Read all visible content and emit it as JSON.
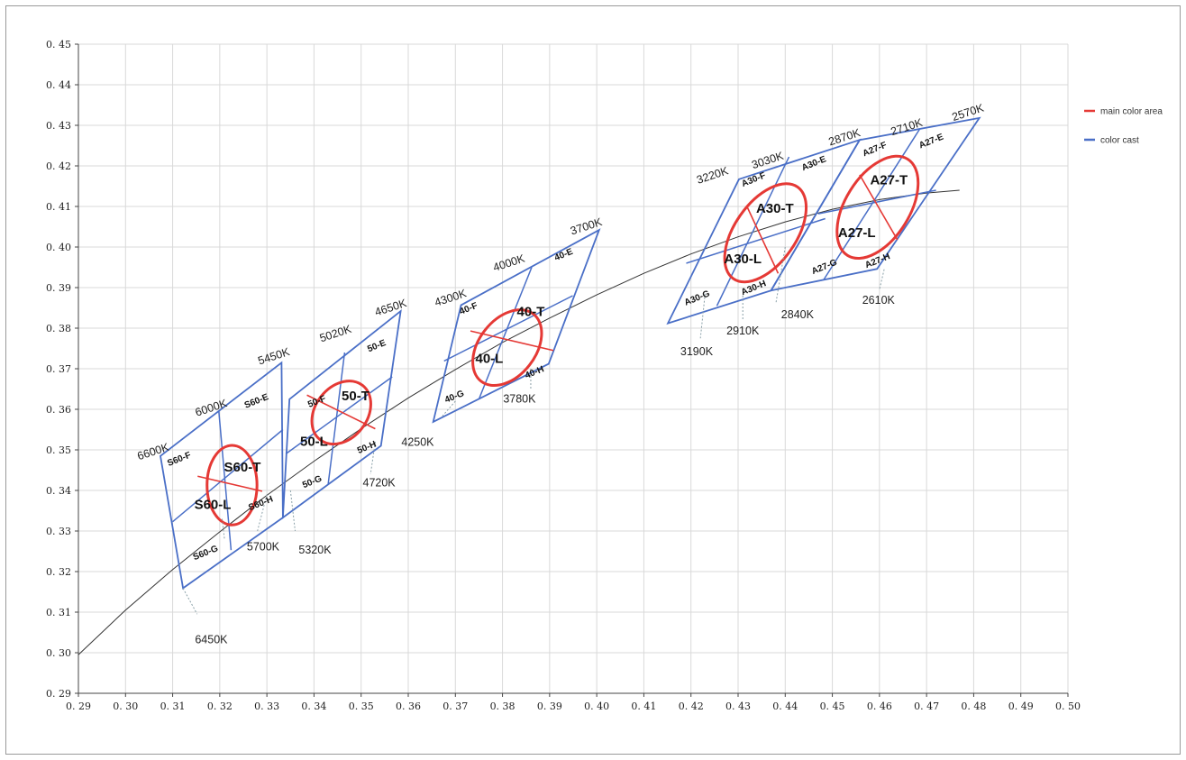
{
  "chart_data": {
    "type": "scatter",
    "title": "",
    "xlabel": "",
    "ylabel": "",
    "xlim": [
      0.29,
      0.5
    ],
    "ylim": [
      0.29,
      0.45
    ],
    "grid": true,
    "legend_placement": "right",
    "x_ticks": [
      "0. 29",
      "0. 30",
      "0. 31",
      "0. 32",
      "0. 33",
      "0. 34",
      "0. 35",
      "0. 36",
      "0. 37",
      "0. 38",
      "0. 39",
      "0. 40",
      "0. 41",
      "0. 42",
      "0. 43",
      "0. 44",
      "0. 45",
      "0. 46",
      "0. 47",
      "0. 48",
      "0. 49",
      "0. 50"
    ],
    "y_ticks": [
      "0. 29",
      "0. 30",
      "0. 31",
      "0. 32",
      "0. 33",
      "0. 34",
      "0. 35",
      "0. 36",
      "0. 37",
      "0. 38",
      "0. 39",
      "0. 40",
      "0. 41",
      "0. 42",
      "0. 43",
      "0. 44",
      "0. 45"
    ],
    "legend": [
      {
        "name": "main color area",
        "color": "#e53935"
      },
      {
        "name": "color cast",
        "color": "#4a6fc7"
      }
    ],
    "colors": {
      "main": "#e53935",
      "cast": "#4a6fc7",
      "locus": "#333333",
      "grid": "#d9d9d9"
    },
    "locus": {
      "x": [
        0.29,
        0.3,
        0.31,
        0.32,
        0.33,
        0.34,
        0.35,
        0.36,
        0.37,
        0.38,
        0.39,
        0.4,
        0.41,
        0.42,
        0.43,
        0.44,
        0.45,
        0.46,
        0.47,
        0.477
      ],
      "y": [
        0.2995,
        0.3105,
        0.3205,
        0.3298,
        0.3388,
        0.3472,
        0.3552,
        0.3628,
        0.3698,
        0.3765,
        0.3825,
        0.3882,
        0.3935,
        0.3983,
        0.4025,
        0.4062,
        0.4093,
        0.4117,
        0.4133,
        0.414
      ]
    },
    "zones": [
      {
        "corners": [
          [
            0.3074,
            0.3485
          ],
          [
            0.3331,
            0.3715
          ],
          [
            0.3334,
            0.3333
          ],
          [
            0.3122,
            0.3159
          ]
        ],
        "inner_lines": [
          [
            [
              0.3198,
              0.3595
            ],
            [
              0.3224,
              0.3253
            ]
          ],
          [
            [
              0.31,
              0.3323
            ],
            [
              0.3334,
              0.355
            ]
          ]
        ],
        "ellipse": {
          "cx": 0.3226,
          "cy": 0.3413,
          "rx": 0.0053,
          "ry": 0.0098,
          "rot": 0
        },
        "ellipse_divider": [
          [
            0.3153,
            0.3435
          ],
          [
            0.329,
            0.3398
          ]
        ],
        "quad_labels": [
          {
            "text": "S60-F",
            "x": 0.3116,
            "y": 0.3471
          },
          {
            "text": "S60-E",
            "x": 0.328,
            "y": 0.3614
          },
          {
            "text": "S60-H",
            "x": 0.3289,
            "y": 0.3362
          },
          {
            "text": "S60-G",
            "x": 0.3172,
            "y": 0.324
          }
        ],
        "main_labels": [
          {
            "text": "S60-T",
            "x": 0.3248,
            "y": 0.3447
          },
          {
            "text": "S60-L",
            "x": 0.3185,
            "y": 0.3355
          }
        ],
        "cct_labels": [
          {
            "text": "6600K",
            "x": 0.3061,
            "y": 0.3487
          },
          {
            "text": "6000K",
            "x": 0.3184,
            "y": 0.3595
          },
          {
            "text": "5450K",
            "x": 0.3317,
            "y": 0.3722
          },
          {
            "text": "6450K",
            "x": 0.3182,
            "y": 0.3023
          },
          {
            "text": "5700K",
            "x": 0.3292,
            "y": 0.3252
          }
        ]
      },
      {
        "corners": [
          [
            0.3348,
            0.3625
          ],
          [
            0.3584,
            0.3842
          ],
          [
            0.3542,
            0.351
          ],
          [
            0.3334,
            0.3333
          ]
        ],
        "inner_lines": [
          [
            [
              0.3465,
              0.374
            ],
            [
              0.343,
              0.3415
            ]
          ],
          [
            [
              0.334,
              0.349
            ],
            [
              0.3566,
              0.368
            ]
          ]
        ],
        "ellipse": {
          "cx": 0.3458,
          "cy": 0.3592,
          "rx": 0.0055,
          "ry": 0.0085,
          "rot": 38
        },
        "ellipse_divider": [
          [
            0.3385,
            0.3635
          ],
          [
            0.353,
            0.3552
          ]
        ],
        "quad_labels": [
          {
            "text": "50-F",
            "x": 0.3408,
            "y": 0.3613
          },
          {
            "text": "50-E",
            "x": 0.3535,
            "y": 0.375
          },
          {
            "text": "50-H",
            "x": 0.3514,
            "y": 0.35
          },
          {
            "text": "50-G",
            "x": 0.3398,
            "y": 0.3415
          }
        ],
        "main_labels": [
          {
            "text": "50-T",
            "x": 0.3488,
            "y": 0.3622
          },
          {
            "text": "50-L",
            "x": 0.34,
            "y": 0.351
          }
        ],
        "cct_labels": [
          {
            "text": "5020K",
            "x": 0.3448,
            "y": 0.3778
          },
          {
            "text": "4650K",
            "x": 0.3565,
            "y": 0.3842
          },
          {
            "text": "5320K",
            "x": 0.3402,
            "y": 0.3244
          },
          {
            "text": "4720K",
            "x": 0.3538,
            "y": 0.341
          }
        ]
      },
      {
        "corners": [
          [
            0.3712,
            0.3857
          ],
          [
            0.4005,
            0.4042
          ],
          [
            0.3898,
            0.3712
          ],
          [
            0.3653,
            0.3569
          ]
        ],
        "inner_lines": [
          [
            [
              0.3862,
              0.395
            ],
            [
              0.375,
              0.3625
            ]
          ],
          [
            [
              0.3676,
              0.3719
            ],
            [
              0.3949,
              0.388
            ]
          ]
        ],
        "ellipse": {
          "cx": 0.381,
          "cy": 0.3752,
          "rx": 0.006,
          "ry": 0.0105,
          "rot": 38
        },
        "ellipse_divider": [
          [
            0.3732,
            0.3793
          ],
          [
            0.3908,
            0.3745
          ]
        ],
        "quad_labels": [
          {
            "text": "40-F",
            "x": 0.373,
            "y": 0.3842
          },
          {
            "text": "40-E",
            "x": 0.3932,
            "y": 0.3975
          },
          {
            "text": "40-H",
            "x": 0.387,
            "y": 0.3685
          },
          {
            "text": "40-G",
            "x": 0.37,
            "y": 0.3625
          }
        ],
        "main_labels": [
          {
            "text": "40-T",
            "x": 0.386,
            "y": 0.383
          },
          {
            "text": "40-L",
            "x": 0.3772,
            "y": 0.3715
          }
        ],
        "cct_labels": [
          {
            "text": "4300K",
            "x": 0.3692,
            "y": 0.3866
          },
          {
            "text": "4000K",
            "x": 0.3816,
            "y": 0.3952
          },
          {
            "text": "3700K",
            "x": 0.398,
            "y": 0.4042
          },
          {
            "text": "4250K",
            "x": 0.362,
            "y": 0.351
          },
          {
            "text": "3780K",
            "x": 0.3836,
            "y": 0.3617
          }
        ]
      },
      {
        "corners": [
          [
            0.4302,
            0.4167
          ],
          [
            0.4558,
            0.4264
          ],
          [
            0.437,
            0.3893
          ],
          [
            0.4151,
            0.3812
          ]
        ],
        "inner_lines": [
          [
            [
              0.4408,
              0.4222
            ],
            [
              0.4255,
              0.3855
            ]
          ],
          [
            [
              0.419,
              0.396
            ],
            [
              0.4485,
              0.407
            ]
          ]
        ],
        "ellipse": {
          "cx": 0.4358,
          "cy": 0.4035,
          "rx": 0.0065,
          "ry": 0.0138,
          "rot": 35
        },
        "ellipse_divider": [
          [
            0.4318,
            0.4102
          ],
          [
            0.4385,
            0.3935
          ]
        ],
        "quad_labels": [
          {
            "text": "A30-F",
            "x": 0.4335,
            "y": 0.416
          },
          {
            "text": "A30-E",
            "x": 0.4463,
            "y": 0.42
          },
          {
            "text": "A30-H",
            "x": 0.4335,
            "y": 0.3893
          },
          {
            "text": "A30-G",
            "x": 0.4215,
            "y": 0.3868
          }
        ],
        "main_labels": [
          {
            "text": "A30-T",
            "x": 0.4378,
            "y": 0.4085
          },
          {
            "text": "A30-L",
            "x": 0.431,
            "y": 0.396
          }
        ],
        "cct_labels": [
          {
            "text": "3220K",
            "x": 0.4248,
            "y": 0.4168
          },
          {
            "text": "3030K",
            "x": 0.4365,
            "y": 0.4205
          },
          {
            "text": "3190K",
            "x": 0.4212,
            "y": 0.3733
          },
          {
            "text": "2910K",
            "x": 0.431,
            "y": 0.3785
          }
        ]
      },
      {
        "corners": [
          [
            0.4558,
            0.4264
          ],
          [
            0.4812,
            0.4318
          ],
          [
            0.4595,
            0.3946
          ],
          [
            0.437,
            0.3893
          ]
        ],
        "inner_lines": [
          [
            [
              0.4685,
              0.429
            ],
            [
              0.4482,
              0.392
            ]
          ],
          [
            [
              0.447,
              0.4082
            ],
            [
              0.472,
              0.414
            ]
          ]
        ],
        "ellipse": {
          "cx": 0.4596,
          "cy": 0.4098,
          "rx": 0.0068,
          "ry": 0.014,
          "rot": 32
        },
        "ellipse_divider": [
          [
            0.4558,
            0.4178
          ],
          [
            0.4638,
            0.4018
          ]
        ],
        "quad_labels": [
          {
            "text": "A27-F",
            "x": 0.4592,
            "y": 0.4235
          },
          {
            "text": "A27-E",
            "x": 0.4712,
            "y": 0.4255
          },
          {
            "text": "A27-H",
            "x": 0.4598,
            "y": 0.396
          },
          {
            "text": "A27-G",
            "x": 0.4485,
            "y": 0.3945
          }
        ],
        "main_labels": [
          {
            "text": "A27-T",
            "x": 0.462,
            "y": 0.4155
          },
          {
            "text": "A27-L",
            "x": 0.4552,
            "y": 0.4025
          }
        ],
        "cct_labels": [
          {
            "text": "2870K",
            "x": 0.4528,
            "y": 0.4262
          },
          {
            "text": "2710K",
            "x": 0.466,
            "y": 0.4287
          },
          {
            "text": "2570K",
            "x": 0.479,
            "y": 0.4323
          },
          {
            "text": "2840K",
            "x": 0.4426,
            "y": 0.3825
          },
          {
            "text": "2610K",
            "x": 0.4598,
            "y": 0.386
          }
        ]
      }
    ],
    "leader_lines": [
      [
        [
          0.3122,
          0.3159
        ],
        [
          0.3152,
          0.3095
        ]
      ],
      [
        [
          0.3205,
          0.333
        ],
        [
          0.321,
          0.328
        ]
      ],
      [
        [
          0.33,
          0.339
        ],
        [
          0.328,
          0.33
        ]
      ],
      [
        [
          0.335,
          0.34
        ],
        [
          0.336,
          0.33
        ]
      ],
      [
        [
          0.353,
          0.352
        ],
        [
          0.352,
          0.344
        ]
      ],
      [
        [
          0.37,
          0.362
        ],
        [
          0.367,
          0.358
        ]
      ],
      [
        [
          0.386,
          0.37
        ],
        [
          0.386,
          0.365
        ]
      ],
      [
        [
          0.423,
          0.3885
        ],
        [
          0.422,
          0.3775
        ]
      ],
      [
        [
          0.431,
          0.388
        ],
        [
          0.431,
          0.382
        ]
      ],
      [
        [
          0.44,
          0.4
        ],
        [
          0.438,
          0.386
        ]
      ],
      [
        [
          0.461,
          0.3945
        ],
        [
          0.46,
          0.3895
        ]
      ]
    ]
  }
}
